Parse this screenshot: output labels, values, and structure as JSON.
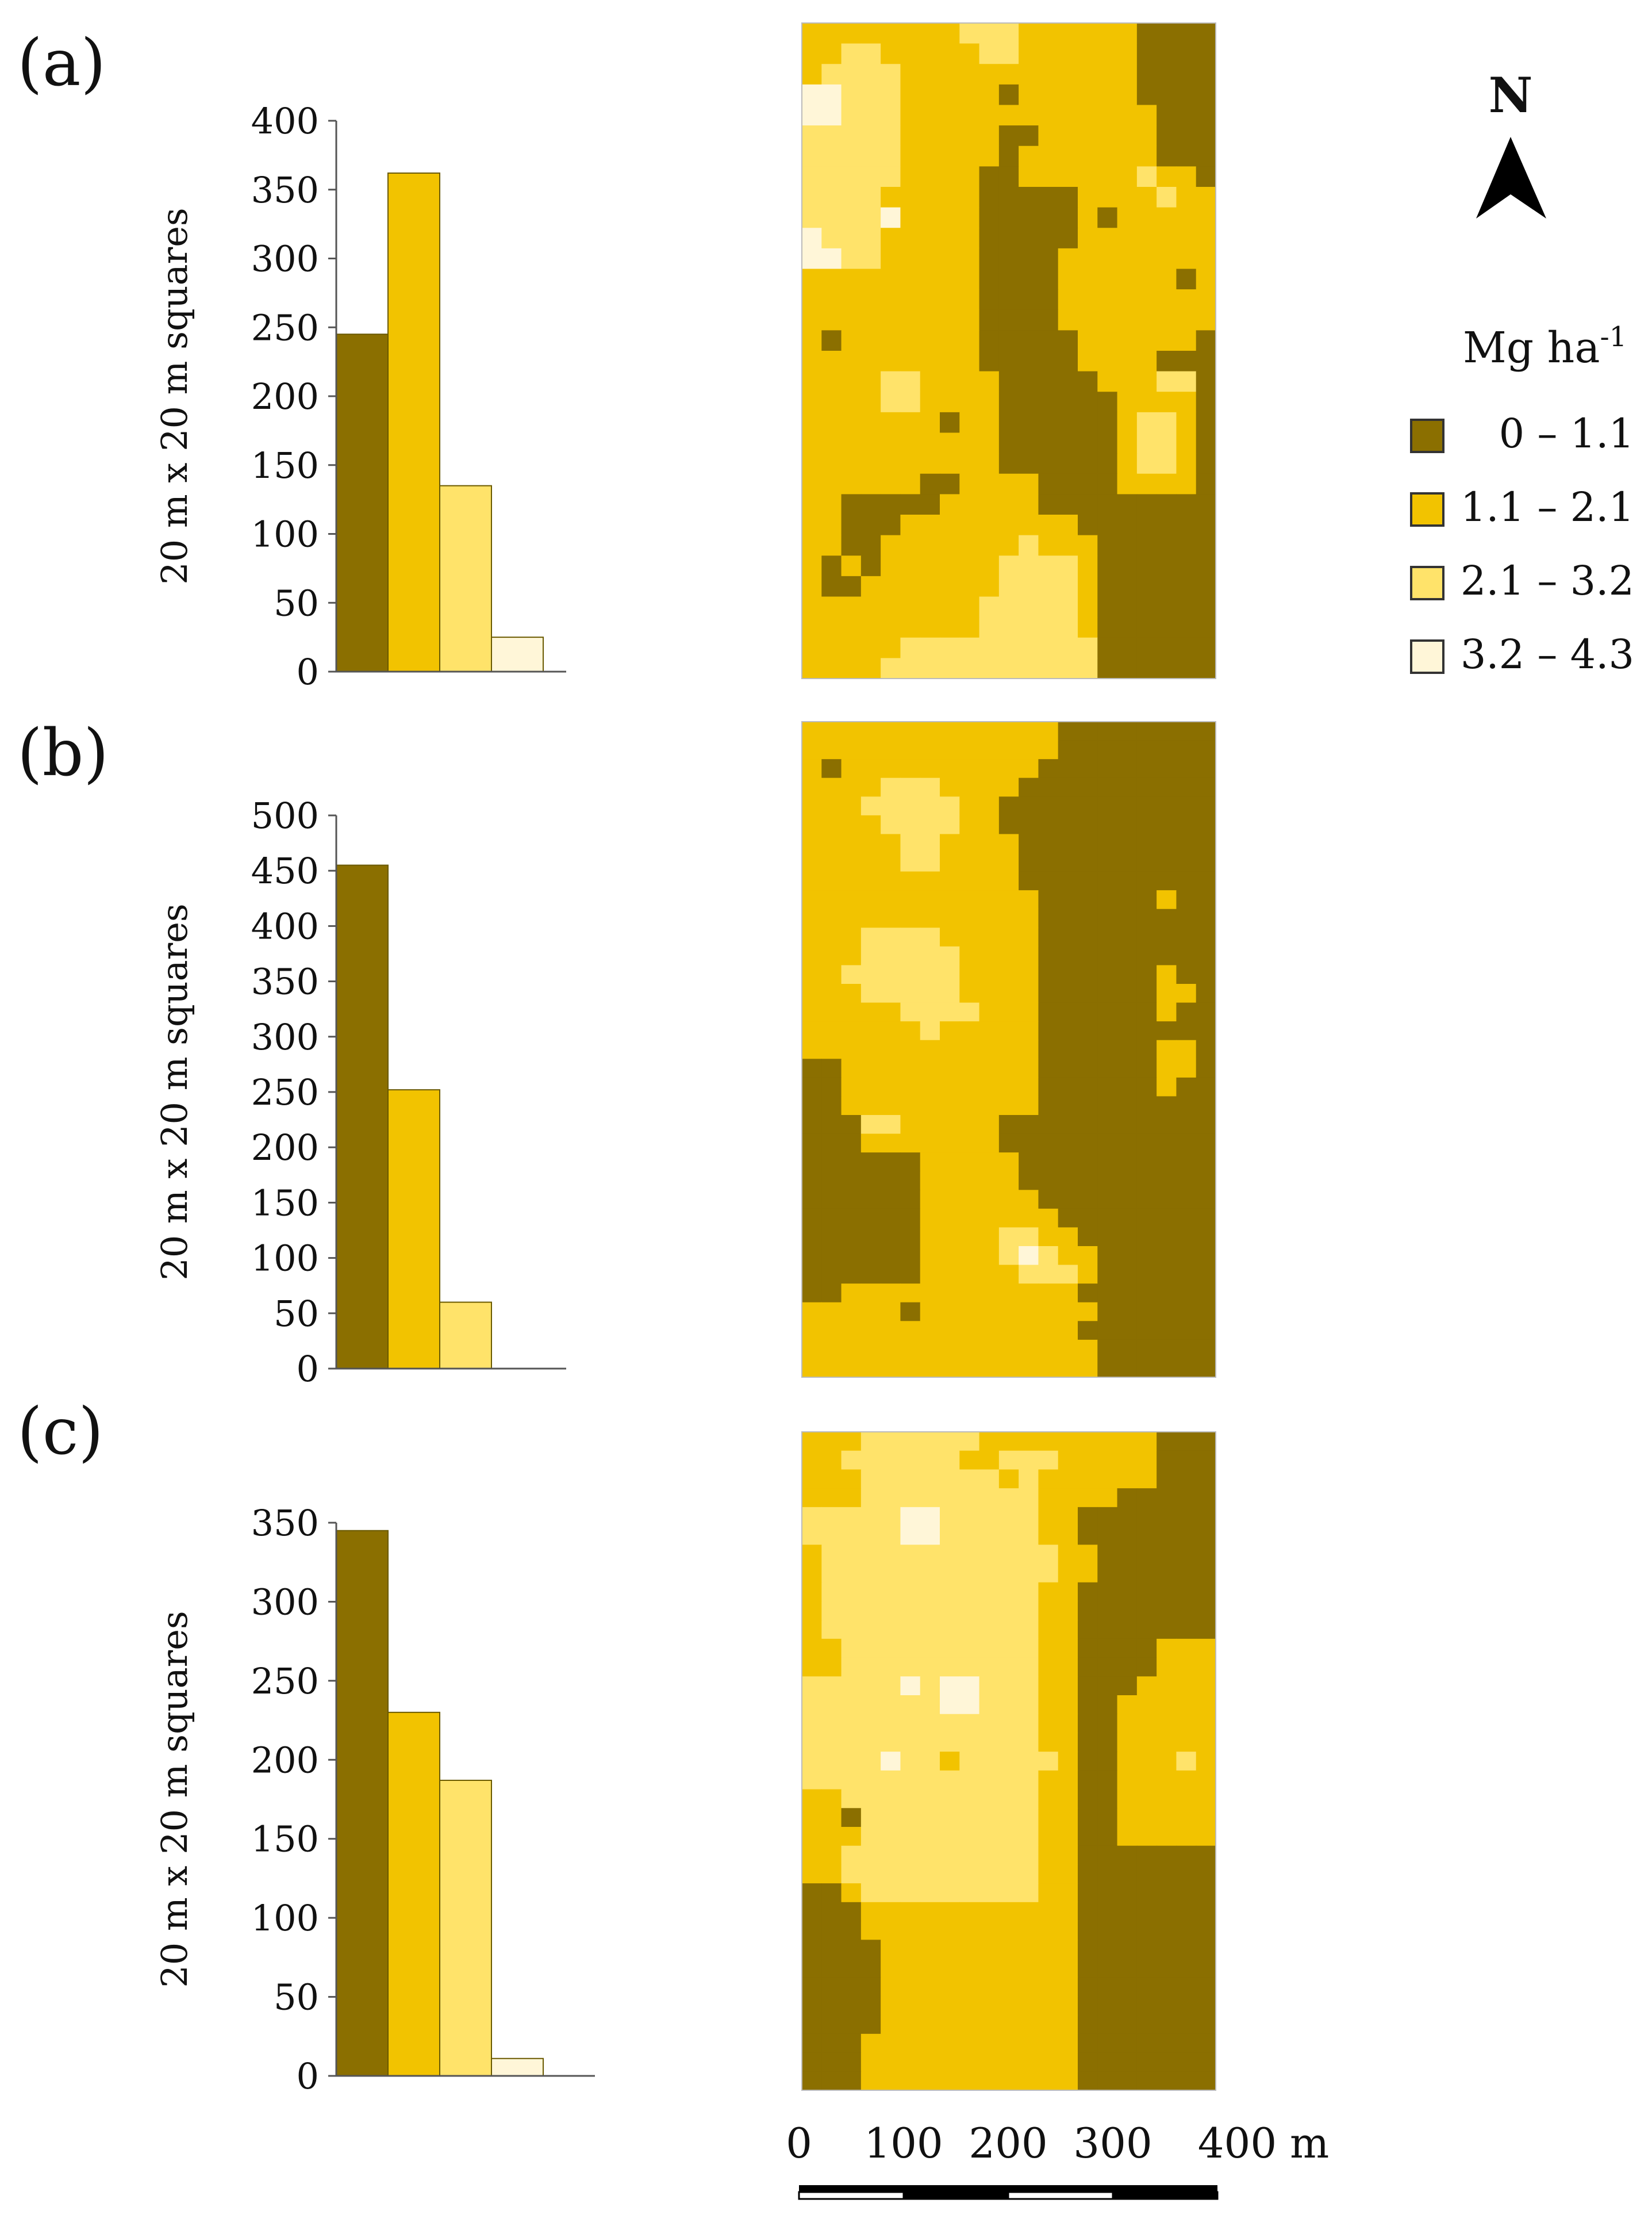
{
  "colors": {
    "class_0_1_1": "#8B6F00",
    "class_1_1_2_1": "#F2C300",
    "class_2_1_3_2": "#FFE36A",
    "class_3_2_4_3": "#FFF6D8",
    "axis": "#555555",
    "bar_stroke": "#6a5a00"
  },
  "legend": {
    "title_main": "Mg ha",
    "title_sup": "-1",
    "items": [
      "0 – 1.1",
      "1.1 – 2.1",
      "2.1 – 3.2",
      "3.2 – 4.3"
    ]
  },
  "north": {
    "label": "N"
  },
  "scale_bar": {
    "ticks": [
      "0",
      "100",
      "200",
      "300",
      "400 m"
    ]
  },
  "chart_data": [
    {
      "type": "bar",
      "panel": "(a)",
      "categories": [
        "0 – 1.1",
        "1.1 – 2.1",
        "2.1 – 3.2",
        "3.2 – 4.3"
      ],
      "values": [
        245,
        362,
        135,
        25
      ],
      "ylabel": "20 m x 20 m squares",
      "ylim": [
        0,
        400
      ],
      "yticks": [
        0,
        50,
        100,
        150,
        200,
        250,
        300,
        350,
        400
      ]
    },
    {
      "type": "bar",
      "panel": "(b)",
      "categories": [
        "0 – 1.1",
        "1.1 – 2.1",
        "2.1 – 3.2",
        "3.2 – 4.3"
      ],
      "values": [
        455,
        252,
        60,
        0
      ],
      "ylabel": "20 m x 20 m squares",
      "ylim": [
        0,
        500
      ],
      "yticks": [
        0,
        50,
        100,
        150,
        200,
        250,
        300,
        350,
        400,
        450,
        500
      ]
    },
    {
      "type": "bar",
      "panel": "(c)",
      "categories": [
        "0 – 1.1",
        "1.1 – 2.1",
        "2.1 – 3.2",
        "3.2 – 4.3"
      ],
      "values": [
        345,
        230,
        187,
        11
      ],
      "ylabel": "20 m x 20 m squares",
      "ylim": [
        0,
        350
      ],
      "yticks": [
        0,
        50,
        100,
        150,
        200,
        250,
        300,
        350
      ]
    }
  ],
  "maps": [
    {
      "panel": "(a)",
      "rows": [
        "222222223332222220000",
        "223322222332222220000",
        "233332222222222220000",
        "443332222202222220000",
        "443332222222222222000",
        "333332222200222222000",
        "333332222202222222000",
        "333332222002222223220",
        "333322222000002222322",
        "333342222000002022222",
        "433322222000002222222",
        "443322222000022222222",
        "222222222000022222202",
        "222222222000022222222",
        "222222222000022222222",
        "202222222000002222220",
        "222222222000002222000",
        "222233222200000222330",
        "222233222200000022220",
        "222222202200000023320",
        "222222222200000023320",
        "222222222200000023320",
        "222222002222000022220",
        "220000022222000000000",
        "220002222222220000000",
        "220022222223222000000",
        "202022222233332000000",
        "200222222233332000000",
        "222222222333332000000",
        "222222222333332000000",
        "222223333333333000000",
        "222233333333333000000"
      ]
    },
    {
      "panel": "(b)",
      "rows": [
        "222222222222200000000",
        "222222222222200000000",
        "202222222222000000000",
        "222233322220000000000",
        "222333332200000000000",
        "222233332200000000000",
        "222223322220000000000",
        "222223322220000000000",
        "222222222220000000000",
        "222222222222000000200",
        "222222222222000000000",
        "222333322222000000000",
        "222333332222000000000",
        "223333332222000000200",
        "222333332222000000220",
        "222223333222000000200",
        "222222322222000000000",
        "222222222222000000220",
        "002222222222000000220",
        "002222222222000000200",
        "002222222222000000000",
        "000332222200000000000",
        "000222222200000000000",
        "000000222220000000000",
        "000000222220000000000",
        "000000222222000000000",
        "000000222222200000000",
        "000000222233220000000",
        "000000222234322000000",
        "000000222223332000000",
        "002222222222220000000",
        "222220222222222000000",
        "222222222222220000000",
        "222222222222222000000",
        "222222222222222000000"
      ]
    },
    {
      "panel": "(c)",
      "rows": [
        "222333333222222222000",
        "223333332233322222000",
        "222333333323222222000",
        "222333333333222200000",
        "333334433333220000000",
        "333334433333220000000",
        "233333333333322000000",
        "233333333333322000000",
        "233333333333220000000",
        "233333333333220000000",
        "233333333333220000000",
        "223333333333220000222",
        "223333333333220000222",
        "333334344333220002222",
        "333333344333220022222",
        "333333333333220022222",
        "333333333333220022222",
        "333343323333320022232",
        "333333333333220022222",
        "223333333333220022222",
        "220333333333220022222",
        "222333333333220022222",
        "223333333333220000000",
        "223333333333220000000",
        "002333333333220000000",
        "000222222222220000000",
        "000222222222220000000",
        "000022222222220000000",
        "000022222222220000000",
        "000022222222220000000",
        "000022222222220000000",
        "000022222222220000000",
        "000222222222220000000",
        "000222222222220000000",
        "000222222222220000000"
      ]
    }
  ]
}
